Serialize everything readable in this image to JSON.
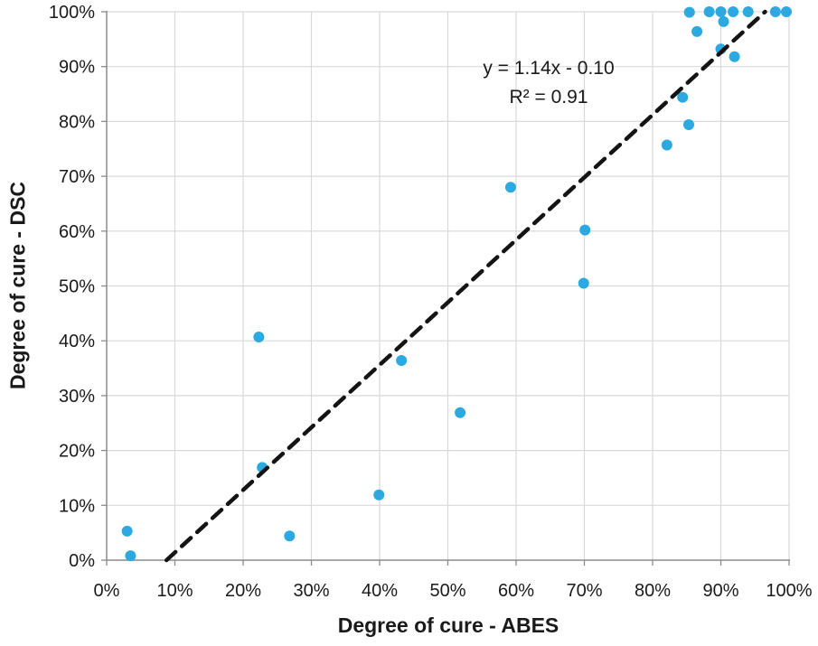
{
  "chart_data": {
    "type": "scatter",
    "title": "",
    "xlabel": "Degree of cure - ABES",
    "ylabel": "Degree of cure - DSC",
    "x_ticks": [
      "0%",
      "10%",
      "20%",
      "30%",
      "40%",
      "50%",
      "60%",
      "70%",
      "80%",
      "90%",
      "100%"
    ],
    "y_ticks": [
      "0%",
      "10%",
      "20%",
      "30%",
      "40%",
      "50%",
      "60%",
      "70%",
      "80%",
      "90%",
      "100%"
    ],
    "xlim_pct": [
      0,
      100
    ],
    "ylim_pct": [
      0,
      100
    ],
    "grid": true,
    "legend": "none",
    "points_pct": [
      [
        3.0,
        5.3
      ],
      [
        3.5,
        0.8
      ],
      [
        22.3,
        40.7
      ],
      [
        22.8,
        16.9
      ],
      [
        26.8,
        4.4
      ],
      [
        39.9,
        11.9
      ],
      [
        43.2,
        36.4
      ],
      [
        51.8,
        26.9
      ],
      [
        59.2,
        68.0
      ],
      [
        69.9,
        50.5
      ],
      [
        70.1,
        60.2
      ],
      [
        82.1,
        75.7
      ],
      [
        84.4,
        84.4
      ],
      [
        85.3,
        79.4
      ],
      [
        85.4,
        99.9
      ],
      [
        86.5,
        96.4
      ],
      [
        88.3,
        100.0
      ],
      [
        90.0,
        93.2
      ],
      [
        90.0,
        100.0
      ],
      [
        90.4,
        98.2
      ],
      [
        91.8,
        100.0
      ],
      [
        92.0,
        91.8
      ],
      [
        94.0,
        100.0
      ],
      [
        98.0,
        100.0
      ],
      [
        99.6,
        100.0
      ]
    ],
    "marker_diameter_px": 12,
    "trendline": {
      "slope": 1.14,
      "intercept": -0.1,
      "equation": "y = 1.14x - 0.10",
      "r_squared": "R² = 0.91",
      "style": "dashed"
    },
    "colors": {
      "point": "#2BA9E0",
      "trendline": "#141414",
      "grid": "#d9d9d9",
      "axis": "#8c8c8c",
      "text": "#1a1a1a",
      "background": "#ffffff"
    }
  }
}
